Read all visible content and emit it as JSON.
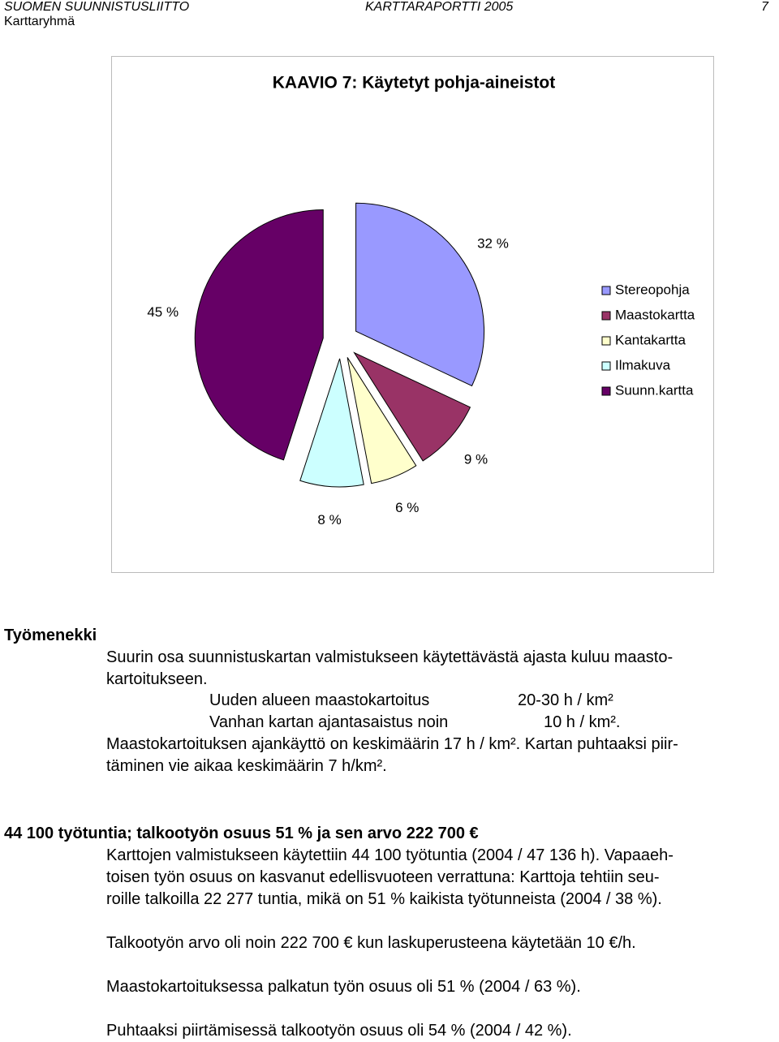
{
  "header": {
    "left": "SUOMEN SUUNNISTUSLIITTO",
    "center": "KARTTARAPORTTI 2005",
    "page": "7",
    "sub": "Karttaryhmä"
  },
  "chart_data": {
    "type": "pie",
    "title": "KAAVIO 7: Käytetyt pohja-aineistot",
    "categories": [
      "Stereopohja",
      "Maastokartta",
      "Kantakartta",
      "Ilmakuva",
      "Suunn.kartta"
    ],
    "values": [
      32,
      9,
      6,
      8,
      45
    ],
    "value_labels": [
      "32 %",
      "9 %",
      "6 %",
      "8 %",
      "45 %"
    ],
    "colors": [
      "#9999ff",
      "#993366",
      "#ffffcc",
      "#ccffff",
      "#660066"
    ],
    "exploded": true,
    "legend": "right"
  },
  "text": {
    "heading1": "Työmenekki",
    "p1": [
      "Suurin osa suunnistuskartan valmistukseen käytettävästä ajasta kuluu maasto-",
      "kartoitukseen."
    ],
    "rows": [
      [
        "Uuden alueen maastokartoitus",
        "20-30 h / km²"
      ],
      [
        "Vanhan kartan ajantasaistus noin",
        "10 h / km²."
      ]
    ],
    "p2": [
      "Maastokartoituksen ajankäyttö on keskimäärin 17 h / km². Kartan puhtaaksi piir-",
      "täminen vie aikaa keskimäärin 7 h/km²."
    ],
    "heading2": "44 100 työtuntia; talkootyön osuus 51 % ja sen arvo 222 700 €",
    "p3": [
      "Karttojen valmistukseen käytettiin 44 100 työtuntia (2004 / 47 136 h). Vapaaeh-",
      "toisen työn osuus on kasvanut edellisvuoteen verrattuna: Karttoja tehtiin seu-",
      "roille talkoilla 22 277 tuntia, mikä on 51 % kaikista työtunneista (2004 / 38 %)."
    ],
    "p4": "Talkootyön arvo oli noin 222 700 € kun laskuperusteena käytetään 10 €/h.",
    "p5": "Maastokartoituksessa palkatun työn osuus oli 51 % (2004 / 63 %).",
    "p6": "Puhtaaksi piirtämisessä talkootyön osuus oli 54 % (2004 / 42 %)."
  }
}
